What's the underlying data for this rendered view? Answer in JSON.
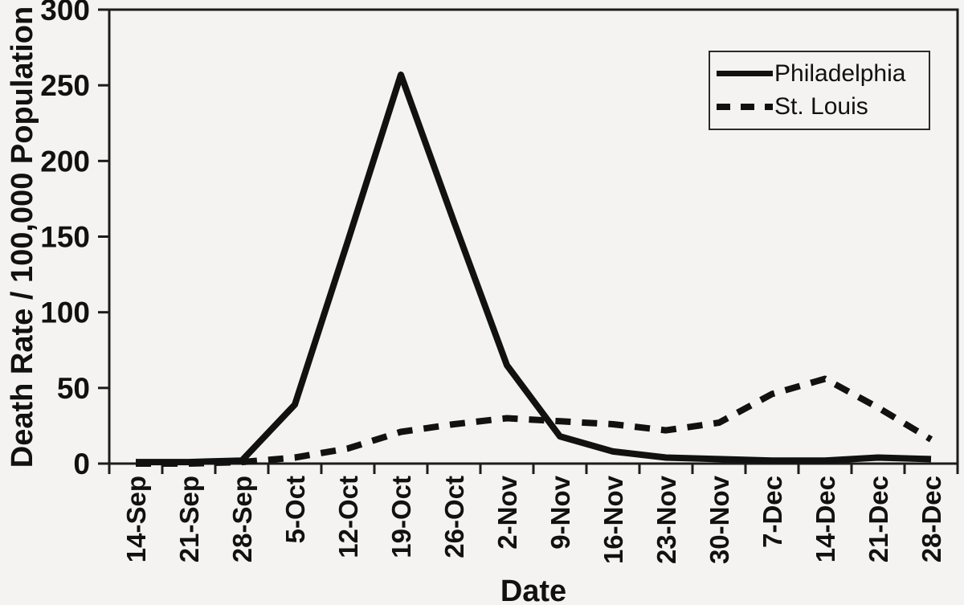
{
  "chart_data": {
    "type": "line",
    "title": "",
    "xlabel": "Date",
    "ylabel": "Death Rate / 100,000 Population",
    "ylim": [
      0,
      300
    ],
    "yticks": [
      0,
      50,
      100,
      150,
      200,
      250,
      300
    ],
    "grid": false,
    "legend_position": "top-right-inside",
    "categories": [
      "14-Sep",
      "21-Sep",
      "28-Sep",
      "5-Oct",
      "12-Oct",
      "19-Oct",
      "26-Oct",
      "2-Nov",
      "9-Nov",
      "16-Nov",
      "23-Nov",
      "30-Nov",
      "7-Dec",
      "14-Dec",
      "21-Dec",
      "28-Dec"
    ],
    "series": [
      {
        "name": "Philadelphia",
        "style": "solid",
        "values": [
          1,
          1,
          2,
          39,
          147,
          257,
          160,
          65,
          18,
          8,
          4,
          3,
          2,
          2,
          4,
          3
        ]
      },
      {
        "name": "St. Louis",
        "style": "dashed",
        "values": [
          0,
          0,
          1,
          4,
          10,
          21,
          26,
          30,
          28,
          26,
          22,
          27,
          46,
          56,
          37,
          16
        ]
      }
    ],
    "colors": {
      "line": "#111111",
      "background": "#f4f3f1",
      "text": "#111111"
    }
  }
}
